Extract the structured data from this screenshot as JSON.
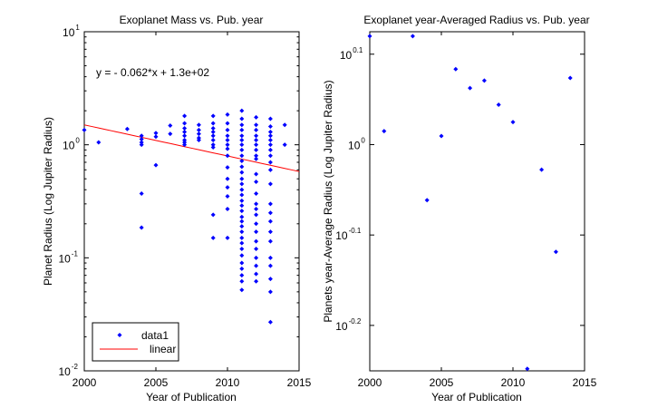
{
  "chart_data": [
    {
      "type": "scatter",
      "title": "Exoplanet Mass vs. Pub. year",
      "xlabel": "Year of Publication",
      "ylabel": "Planet Radius (Log Jupiter Radius)",
      "xlim": [
        2000,
        2015
      ],
      "ylim": [
        0.01,
        10
      ],
      "yscale": "log",
      "x_ticks": [
        "2000",
        "2005",
        "2010",
        "2015"
      ],
      "y_ticks": [
        {
          "base": "10",
          "exp": "-2"
        },
        {
          "base": "10",
          "exp": "-1"
        },
        {
          "base": "10",
          "exp": "0"
        },
        {
          "base": "10",
          "exp": "1"
        }
      ],
      "annotation": "y = - 0.062*x + 1.3e+02",
      "legend": {
        "position": "bottom-left",
        "entries": [
          "data1",
          "linear"
        ]
      },
      "marker_color": "#0000ff",
      "fit_color": "#ff0000",
      "series": [
        {
          "name": "data1",
          "points": [
            [
              2000,
              1.35
            ],
            [
              2001,
              1.05
            ],
            [
              2003,
              1.38
            ],
            [
              2004,
              1.2
            ],
            [
              2004,
              1.12
            ],
            [
              2004,
              1.05
            ],
            [
              2004,
              1.0
            ],
            [
              2004,
              0.37
            ],
            [
              2004,
              0.185
            ],
            [
              2005,
              1.27
            ],
            [
              2005,
              1.18
            ],
            [
              2005,
              0.66
            ],
            [
              2006,
              1.48
            ],
            [
              2006,
              1.25
            ],
            [
              2007,
              1.8
            ],
            [
              2007,
              1.55
            ],
            [
              2007,
              1.4
            ],
            [
              2007,
              1.3
            ],
            [
              2007,
              1.2
            ],
            [
              2007,
              1.1
            ],
            [
              2007,
              1.05
            ],
            [
              2007,
              1.0
            ],
            [
              2008,
              1.5
            ],
            [
              2008,
              1.35
            ],
            [
              2008,
              1.25
            ],
            [
              2008,
              1.15
            ],
            [
              2008,
              1.1
            ],
            [
              2009,
              1.8
            ],
            [
              2009,
              1.55
            ],
            [
              2009,
              1.4
            ],
            [
              2009,
              1.3
            ],
            [
              2009,
              1.2
            ],
            [
              2009,
              1.1
            ],
            [
              2009,
              1.0
            ],
            [
              2009,
              0.95
            ],
            [
              2009,
              0.24
            ],
            [
              2009,
              0.15
            ],
            [
              2010,
              1.85
            ],
            [
              2010,
              1.55
            ],
            [
              2010,
              1.35
            ],
            [
              2010,
              1.2
            ],
            [
              2010,
              1.1
            ],
            [
              2010,
              1.0
            ],
            [
              2010,
              0.92
            ],
            [
              2010,
              0.8
            ],
            [
              2010,
              0.63
            ],
            [
              2010,
              0.5
            ],
            [
              2010,
              0.42
            ],
            [
              2010,
              0.35
            ],
            [
              2010,
              0.27
            ],
            [
              2010,
              0.15
            ],
            [
              2011,
              2.0
            ],
            [
              2011,
              1.7
            ],
            [
              2011,
              1.5
            ],
            [
              2011,
              1.35
            ],
            [
              2011,
              1.2
            ],
            [
              2011,
              1.1
            ],
            [
              2011,
              1.0
            ],
            [
              2011,
              0.9
            ],
            [
              2011,
              0.8
            ],
            [
              2011,
              0.72
            ],
            [
              2011,
              0.64
            ],
            [
              2011,
              0.57
            ],
            [
              2011,
              0.5
            ],
            [
              2011,
              0.45
            ],
            [
              2011,
              0.4
            ],
            [
              2011,
              0.36
            ],
            [
              2011,
              0.32
            ],
            [
              2011,
              0.29
            ],
            [
              2011,
              0.26
            ],
            [
              2011,
              0.23
            ],
            [
              2011,
              0.21
            ],
            [
              2011,
              0.19
            ],
            [
              2011,
              0.17
            ],
            [
              2011,
              0.15
            ],
            [
              2011,
              0.135
            ],
            [
              2011,
              0.12
            ],
            [
              2011,
              0.105
            ],
            [
              2011,
              0.09
            ],
            [
              2011,
              0.08
            ],
            [
              2011,
              0.07
            ],
            [
              2011,
              0.062
            ],
            [
              2011,
              0.052
            ],
            [
              2012,
              1.75
            ],
            [
              2012,
              1.5
            ],
            [
              2012,
              1.35
            ],
            [
              2012,
              1.2
            ],
            [
              2012,
              1.1
            ],
            [
              2012,
              1.0
            ],
            [
              2012,
              0.9
            ],
            [
              2012,
              0.8
            ],
            [
              2012,
              0.75
            ],
            [
              2012,
              0.55
            ],
            [
              2012,
              0.47
            ],
            [
              2012,
              0.37
            ],
            [
              2012,
              0.3
            ],
            [
              2012,
              0.27
            ],
            [
              2012,
              0.24
            ],
            [
              2012,
              0.2
            ],
            [
              2012,
              0.17
            ],
            [
              2012,
              0.14
            ],
            [
              2012,
              0.12
            ],
            [
              2012,
              0.1
            ],
            [
              2012,
              0.085
            ],
            [
              2012,
              0.072
            ],
            [
              2012,
              0.062
            ],
            [
              2013,
              1.7
            ],
            [
              2013,
              1.45
            ],
            [
              2013,
              1.3
            ],
            [
              2013,
              1.2
            ],
            [
              2013,
              1.1
            ],
            [
              2013,
              1.0
            ],
            [
              2013,
              0.9
            ],
            [
              2013,
              0.8
            ],
            [
              2013,
              0.7
            ],
            [
              2013,
              0.6
            ],
            [
              2013,
              0.45
            ],
            [
              2013,
              0.3
            ],
            [
              2013,
              0.25
            ],
            [
              2013,
              0.21
            ],
            [
              2013,
              0.17
            ],
            [
              2013,
              0.14
            ],
            [
              2013,
              0.1
            ],
            [
              2013,
              0.085
            ],
            [
              2013,
              0.065
            ],
            [
              2013,
              0.05
            ],
            [
              2013,
              0.027
            ],
            [
              2014,
              1.5
            ],
            [
              2014,
              1.0
            ]
          ]
        },
        {
          "name": "linear",
          "fit": {
            "slope": -0.062,
            "intercept": 130
          },
          "x": [
            2000,
            2015
          ],
          "y": [
            1.5,
            0.58
          ]
        }
      ]
    },
    {
      "type": "scatter",
      "title": "Exoplanet year-Averaged Radius vs. Pub. year",
      "xlabel": "Year of Publication",
      "ylabel": "Planets year-Average Radius (Log Jupiter Radius)",
      "xlim": [
        2000,
        2015
      ],
      "ylim": [
        0.562,
        1.333
      ],
      "yscale": "log",
      "x_ticks": [
        "2000",
        "2005",
        "2010",
        "2015"
      ],
      "y_ticks": [
        {
          "base": "10",
          "exp": "-0.2"
        },
        {
          "base": "10",
          "exp": "-0.1"
        },
        {
          "base": "10",
          "exp": "0"
        },
        {
          "base": "10",
          "exp": "0.1"
        }
      ],
      "marker_color": "#0000ff",
      "series": [
        {
          "points": [
            [
              2000,
              1.318
            ],
            [
              2001,
              1.035
            ],
            [
              2003,
              1.318
            ],
            [
              2004,
              0.868
            ],
            [
              2005,
              1.022
            ],
            [
              2006,
              1.212
            ],
            [
              2007,
              1.155
            ],
            [
              2008,
              1.177
            ],
            [
              2009,
              1.107
            ],
            [
              2010,
              1.059
            ],
            [
              2011,
              0.565
            ],
            [
              2012,
              0.938
            ],
            [
              2013,
              0.761
            ],
            [
              2014,
              1.185
            ]
          ]
        }
      ]
    }
  ]
}
